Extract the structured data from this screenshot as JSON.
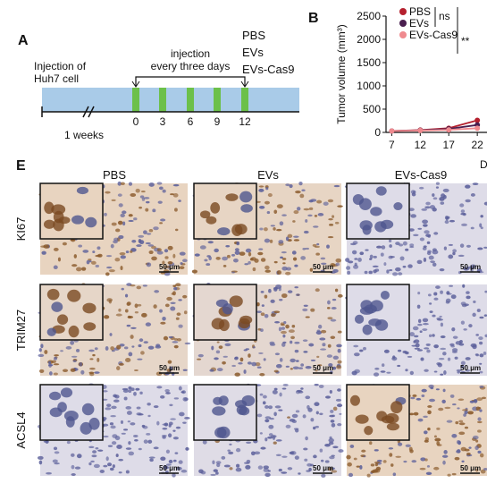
{
  "panel_a": {
    "label": "A",
    "start_label": [
      "Injection of",
      "Huh7 cell"
    ],
    "injection_label": [
      "injection",
      "every three days"
    ],
    "groups": [
      "PBS",
      "EVs",
      "EVs-Cas9"
    ],
    "days": [
      "0",
      "3",
      "6",
      "9",
      "12"
    ],
    "duration": "1 weeks"
  },
  "chart_data": {
    "type": "line",
    "label": "B",
    "y_label": "Tumor volume (mm³)",
    "x_label": "D",
    "x": [
      7,
      12,
      17,
      22
    ],
    "xlim": [
      6,
      23.7
    ],
    "xticks": [
      7,
      12,
      17,
      22
    ],
    "ylim": [
      0,
      2500
    ],
    "yticks": [
      0,
      500,
      1000,
      1500,
      2000,
      2500
    ],
    "series": [
      {
        "name": "PBS",
        "color": "#b5202e",
        "values": [
          30,
          50,
          90,
          260
        ]
      },
      {
        "name": "EVs",
        "color": "#4a1f4f",
        "values": [
          30,
          45,
          75,
          160
        ]
      },
      {
        "name": "EVs-Cas9",
        "color": "#ef8a8f",
        "values": [
          30,
          40,
          55,
          90
        ]
      }
    ],
    "annotations": [
      "ns",
      "**"
    ]
  },
  "panel_e": {
    "label": "E",
    "columns": [
      "PBS",
      "EVs",
      "EVs-Cas9"
    ],
    "rows": [
      "KI67",
      "TRIM27",
      "ACSL4"
    ],
    "scale_bar": "50 μm"
  }
}
